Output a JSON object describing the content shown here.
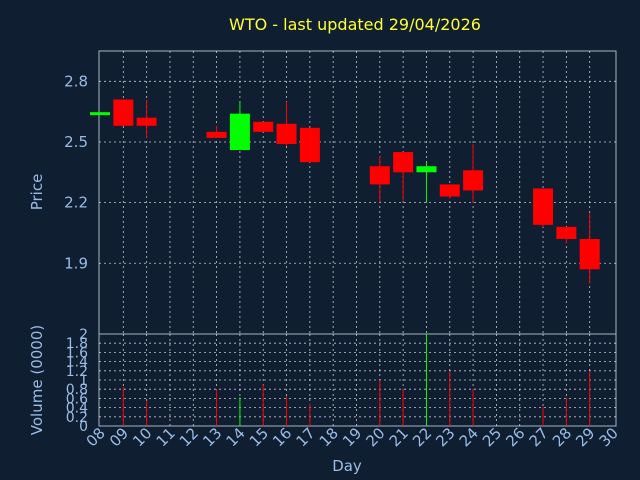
{
  "title": "WTO - last updated 29/04/2026",
  "chart_data": [
    {
      "type": "candlestick",
      "title": "WTO - last updated 29/04/2026",
      "ylabel": "Price",
      "ylim": [
        1.55,
        2.95
      ],
      "yticks": [
        1.9,
        2.2,
        2.5,
        2.8
      ],
      "ytick_labels": [
        "1.9",
        "2.2",
        "2.5",
        "2.8"
      ],
      "grid": true,
      "colors": {
        "up": "#00ff00",
        "down": "#ff0000",
        "flat": "#00ff00"
      },
      "candles": [
        {
          "day": 8,
          "open": 2.64,
          "high": 2.64,
          "low": 2.64,
          "close": 2.64
        },
        {
          "day": 9,
          "open": 2.71,
          "high": 2.71,
          "low": 2.58,
          "close": 2.58
        },
        {
          "day": 10,
          "open": 2.62,
          "high": 2.71,
          "low": 2.52,
          "close": 2.58
        },
        {
          "day": 13,
          "open": 2.55,
          "high": 2.58,
          "low": 2.52,
          "close": 2.52
        },
        {
          "day": 14,
          "open": 2.46,
          "high": 2.7,
          "low": 2.46,
          "close": 2.64
        },
        {
          "day": 15,
          "open": 2.6,
          "high": 2.6,
          "low": 2.55,
          "close": 2.55
        },
        {
          "day": 16,
          "open": 2.59,
          "high": 2.7,
          "low": 2.48,
          "close": 2.49
        },
        {
          "day": 17,
          "open": 2.57,
          "high": 2.57,
          "low": 2.4,
          "close": 2.4
        },
        {
          "day": 20,
          "open": 2.38,
          "high": 2.43,
          "low": 2.2,
          "close": 2.29
        },
        {
          "day": 21,
          "open": 2.45,
          "high": 2.45,
          "low": 2.21,
          "close": 2.35
        },
        {
          "day": 22,
          "open": 2.35,
          "high": 2.4,
          "low": 2.2,
          "close": 2.38
        },
        {
          "day": 23,
          "open": 2.29,
          "high": 2.29,
          "low": 2.22,
          "close": 2.23
        },
        {
          "day": 24,
          "open": 2.36,
          "high": 2.49,
          "low": 2.2,
          "close": 2.26
        },
        {
          "day": 27,
          "open": 2.27,
          "high": 2.27,
          "low": 2.08,
          "close": 2.09
        },
        {
          "day": 28,
          "open": 2.08,
          "high": 2.08,
          "low": 2.0,
          "close": 2.02
        },
        {
          "day": 29,
          "open": 2.02,
          "high": 2.15,
          "low": 1.8,
          "close": 1.87
        }
      ]
    },
    {
      "type": "bar",
      "ylabel": "Volume (0000)",
      "xlabel": "Day",
      "ylim": [
        0,
        2.0
      ],
      "yticks": [
        0,
        0.2,
        0.4,
        0.6,
        0.8,
        1.0,
        1.2,
        1.4,
        1.6,
        1.8,
        2
      ],
      "ytick_labels": [
        "0",
        "0.2",
        "0.4",
        "0.6",
        "0.8",
        "1",
        "1.2",
        "1.4",
        "1.6",
        "1.8",
        "2"
      ],
      "grid": true,
      "x_days": [
        8,
        9,
        10,
        11,
        12,
        13,
        14,
        15,
        16,
        17,
        18,
        19,
        20,
        21,
        22,
        23,
        24,
        25,
        26,
        27,
        28,
        29,
        30
      ],
      "xtick_labels": [
        "08",
        "09",
        "10",
        "11",
        "12",
        "13",
        "14",
        "15",
        "16",
        "17",
        "18",
        "19",
        "20",
        "21",
        "22",
        "23",
        "24",
        "25",
        "26",
        "27",
        "28",
        "29",
        "30"
      ],
      "bars": [
        {
          "day": 9,
          "value": 0.85,
          "color": "#ff0000"
        },
        {
          "day": 10,
          "value": 0.55,
          "color": "#ff0000"
        },
        {
          "day": 13,
          "value": 0.8,
          "color": "#ff0000"
        },
        {
          "day": 14,
          "value": 0.62,
          "color": "#00ff00"
        },
        {
          "day": 15,
          "value": 0.9,
          "color": "#ff0000"
        },
        {
          "day": 16,
          "value": 0.65,
          "color": "#ff0000"
        },
        {
          "day": 17,
          "value": 0.48,
          "color": "#ff0000"
        },
        {
          "day": 20,
          "value": 1.0,
          "color": "#ff0000"
        },
        {
          "day": 21,
          "value": 0.8,
          "color": "#ff0000"
        },
        {
          "day": 22,
          "value": 2.0,
          "color": "#00ff00"
        },
        {
          "day": 23,
          "value": 1.2,
          "color": "#ff0000"
        },
        {
          "day": 24,
          "value": 0.8,
          "color": "#ff0000"
        },
        {
          "day": 27,
          "value": 0.42,
          "color": "#ff0000"
        },
        {
          "day": 28,
          "value": 0.62,
          "color": "#ff0000"
        },
        {
          "day": 29,
          "value": 1.2,
          "color": "#ff0000"
        }
      ]
    }
  ]
}
